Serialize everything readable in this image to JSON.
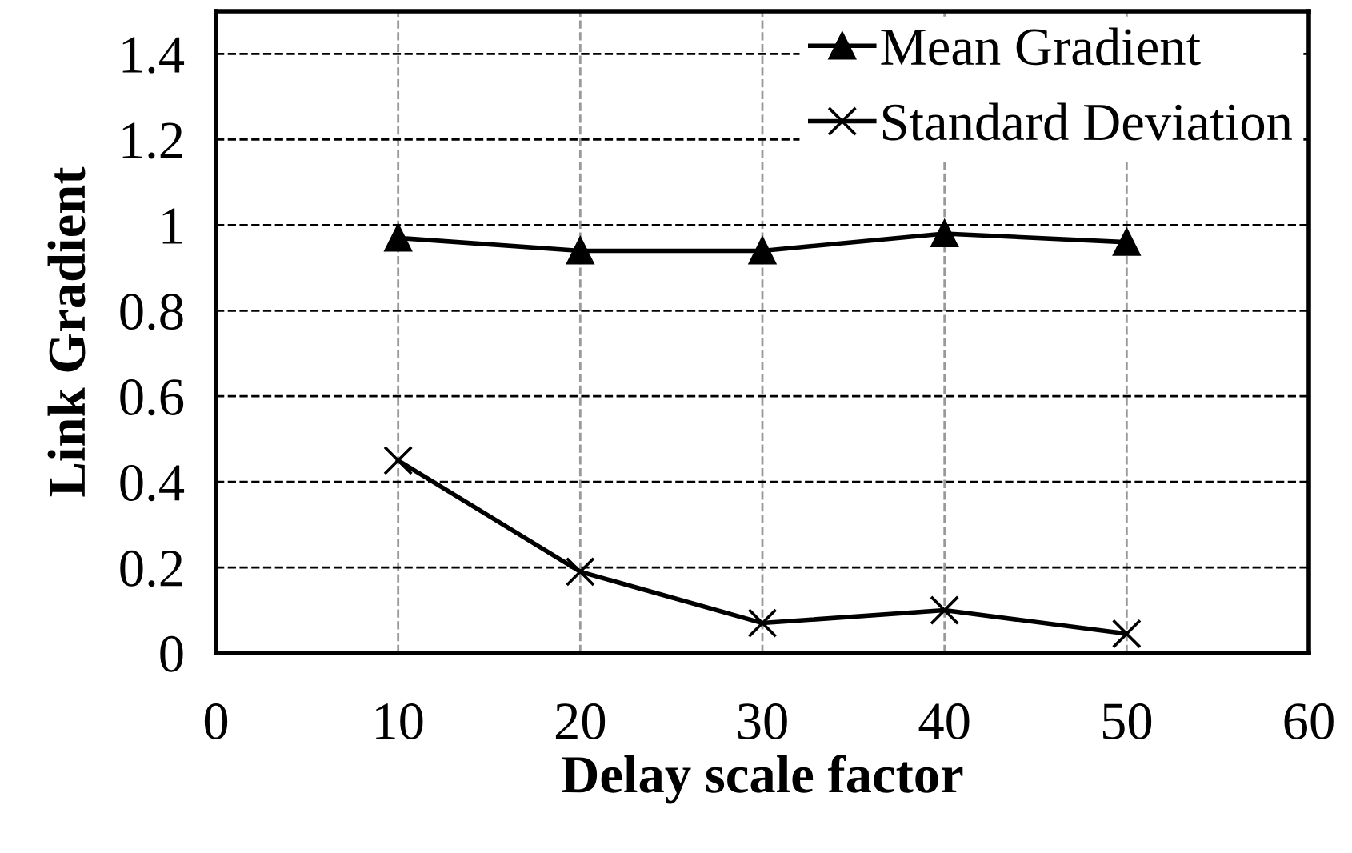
{
  "chart_data": {
    "type": "line",
    "xlabel": "Delay scale factor",
    "ylabel": "Link Gradient",
    "x": [
      10,
      20,
      30,
      40,
      50
    ],
    "series": [
      {
        "name": "Mean Gradient",
        "color": "#000000",
        "marker": "triangle",
        "values": [
          0.97,
          0.94,
          0.94,
          0.98,
          0.96
        ]
      },
      {
        "name": "Standard Deviation",
        "color": "#000000",
        "marker": "cross",
        "values": [
          0.45,
          0.19,
          0.07,
          0.1,
          0.045
        ]
      }
    ],
    "xlim": [
      0,
      60
    ],
    "xticks": [
      0,
      10,
      20,
      30,
      40,
      50,
      60
    ],
    "ylim": [
      0,
      1.5
    ],
    "yticks": [
      0,
      0.2,
      0.4,
      0.6,
      0.8,
      1,
      1.2,
      1.4
    ],
    "grid": true,
    "legend": "top right",
    "line_style": "solid"
  }
}
